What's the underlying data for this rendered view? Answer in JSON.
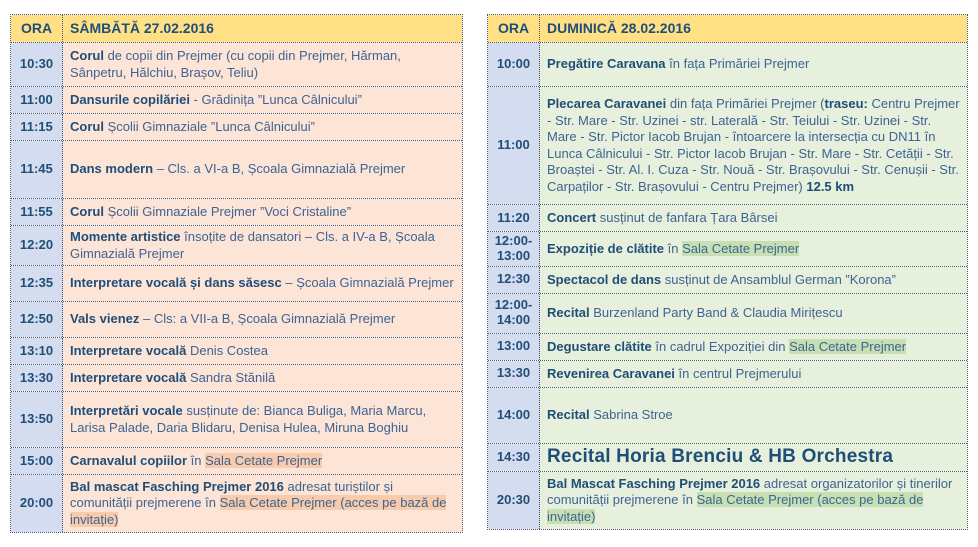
{
  "colors": {
    "header_bg": "#FFE085",
    "time_col_bg": "#D3DDEF",
    "saturday_col_bg": "#FCE4D6",
    "sunday_col_bg": "#E6F0DC",
    "saturday_highlight": "#F8CBAD",
    "sunday_highlight": "#C6E0B4",
    "heading_text": "#1F4E79",
    "body_text": "#3E6493",
    "border": "#44546A"
  },
  "tables": {
    "saturday": {
      "time_header": "ORA",
      "day_header": "SÂMBĂTĂ 27.02.2016",
      "rows": [
        {
          "time": "10:30",
          "segments": [
            {
              "text": "Corul",
              "style": "bold"
            },
            {
              "text": " de copii din Prejmer (cu copii din Prejmer, Hărman, Sânpetru, Hălchiu, Brașov, Teliu)",
              "style": "regular"
            }
          ]
        },
        {
          "time": "11:00",
          "segments": [
            {
              "text": "Dansurile copilăriei",
              "style": "bold"
            },
            {
              "text": " - Grădinița ”Lunca Câlnicului”",
              "style": "regular"
            }
          ]
        },
        {
          "time": "11:15",
          "segments": [
            {
              "text": "Corul",
              "style": "bold"
            },
            {
              "text": " Școlii Gimnaziale ”Lunca Câlnicului”",
              "style": "regular"
            }
          ]
        },
        {
          "time": "11:45",
          "segments": [
            {
              "text": "Dans modern",
              "style": "bold"
            },
            {
              "text": " – Cls. a VI-a B, Școala Gimnazială Prejmer",
              "style": "regular"
            }
          ]
        },
        {
          "time": "11:55",
          "segments": [
            {
              "text": "Corul",
              "style": "bold"
            },
            {
              "text": " Școlii Gimnaziale Prejmer ”Voci Cristaline”",
              "style": "regular"
            }
          ]
        },
        {
          "time": "12:20",
          "segments": [
            {
              "text": "Momente artistice",
              "style": "bold"
            },
            {
              "text": " însoțite de dansatori – Cls. a IV-a B, Școala Gimnazială Prejmer",
              "style": "regular"
            }
          ]
        },
        {
          "time": "12:35",
          "segments": [
            {
              "text": "Interpretare vocală și dans săsesc",
              "style": "bold"
            },
            {
              "text": " – Școala Gimnazială Prejmer",
              "style": "regular"
            }
          ]
        },
        {
          "time": "12:50",
          "segments": [
            {
              "text": "Vals vienez",
              "style": "bold"
            },
            {
              "text": " – Cls: a VII-a B, Școala Gimnazială Prejmer",
              "style": "regular"
            }
          ]
        },
        {
          "time": "13:10",
          "segments": [
            {
              "text": "Interpretare vocală",
              "style": "bold"
            },
            {
              "text": " Denis Costea",
              "style": "regular"
            }
          ]
        },
        {
          "time": "13:30",
          "segments": [
            {
              "text": "Interpretare vocală",
              "style": "bold"
            },
            {
              "text": " Sandra Stănilă",
              "style": "regular"
            }
          ]
        },
        {
          "time": "13:50",
          "segments": [
            {
              "text": "Interpretări vocale",
              "style": "bold"
            },
            {
              "text": " susținute de: Bianca Buliga, Maria Marcu, Larisa Palade, Daria Blidaru, Denisa Hulea, Miruna Boghiu",
              "style": "regular"
            }
          ]
        },
        {
          "time": "15:00",
          "segments": [
            {
              "text": "Carnavalul copiilor",
              "style": "bold"
            },
            {
              "text": " în ",
              "style": "regular"
            },
            {
              "text": "Sala Cetate Prejmer",
              "style": "highlight"
            }
          ]
        },
        {
          "time": "20:00",
          "segments": [
            {
              "text": "Bal mascat Fasching Prejmer 2016",
              "style": "bold"
            },
            {
              "text": " adresat turiștilor și comunității prejmerene în ",
              "style": "regular"
            },
            {
              "text": "Sala Cetate Prejmer (acces pe bază de invitație)",
              "style": "highlight"
            }
          ]
        }
      ]
    },
    "sunday": {
      "time_header": "ORA",
      "day_header": "DUMINICĂ 28.02.2016",
      "rows": [
        {
          "time": "10:00",
          "segments": [
            {
              "text": "Pregătire Caravana",
              "style": "bold"
            },
            {
              "text": " în fața Primăriei Prejmer",
              "style": "regular"
            }
          ]
        },
        {
          "time": "11:00",
          "segments": [
            {
              "text": "Plecarea Caravanei",
              "style": "bold"
            },
            {
              "text": " din fața Primăriei Prejmer (",
              "style": "regular"
            },
            {
              "text": "traseu:",
              "style": "bold"
            },
            {
              "text": " Centru Prejmer - Str. Mare - Str. Uzinei - str. Laterală - Str. Teiului - Str. Uzinei - Str. Mare - Str. Pictor Iacob Brujan - întoarcere la intersecția cu DN11 în Lunca Câlnicului - Str. Pictor Iacob Brujan - Str. Mare - Str. Cetății - Str. Broaștei - Str. Al. I. Cuza - Str. Nouă - Str. Brașovului - Str. Cenușii - Str. Carpaților - Str. Brașovului - Centru Prejmer) ",
              "style": "regular"
            },
            {
              "text": "12.5 km",
              "style": "bold"
            }
          ]
        },
        {
          "time": "11:20",
          "segments": [
            {
              "text": "Concert",
              "style": "bold"
            },
            {
              "text": " susținut de fanfara Țara Bârsei",
              "style": "regular"
            }
          ]
        },
        {
          "time": "12:00-13:00",
          "segments": [
            {
              "text": "Expoziție de clătite",
              "style": "bold"
            },
            {
              "text": " în ",
              "style": "regular"
            },
            {
              "text": "Sala Cetate Prejmer",
              "style": "highlight"
            }
          ]
        },
        {
          "time": "12:30",
          "segments": [
            {
              "text": "Spectacol de dans",
              "style": "bold"
            },
            {
              "text": " susținut de Ansamblul German ”Korona”",
              "style": "regular"
            }
          ]
        },
        {
          "time": "12:00-14:00",
          "segments": [
            {
              "text": "Recital",
              "style": "bold"
            },
            {
              "text": " Burzenland Party Band & Claudia Mirițescu",
              "style": "regular"
            }
          ]
        },
        {
          "time": "13:00",
          "segments": [
            {
              "text": "Degustare clătite",
              "style": "bold"
            },
            {
              "text": " în cadrul Expoziției din ",
              "style": "regular"
            },
            {
              "text": "Sala Cetate Prejmer",
              "style": "highlight"
            }
          ]
        },
        {
          "time": "13:30",
          "segments": [
            {
              "text": "Revenirea Caravanei",
              "style": "bold"
            },
            {
              "text": " în centrul Prejmerului",
              "style": "regular"
            }
          ]
        },
        {
          "time": "14:00",
          "segments": [
            {
              "text": "Recital",
              "style": "bold"
            },
            {
              "text": " Sabrina Stroe",
              "style": "regular"
            }
          ]
        },
        {
          "time": "14:30",
          "segments": [
            {
              "text": "Recital Horia Brenciu & HB Orchestra",
              "style": "bold-large"
            }
          ]
        },
        {
          "time": "20:30",
          "segments": [
            {
              "text": "Bal Mascat Fasching Prejmer 2016",
              "style": "bold"
            },
            {
              "text": " adresat organizatorilor și tinerilor comunității prejmerene în ",
              "style": "regular"
            },
            {
              "text": "Sala Cetate Prejmer (acces pe bază de invitație)",
              "style": "highlight"
            }
          ]
        }
      ]
    }
  }
}
